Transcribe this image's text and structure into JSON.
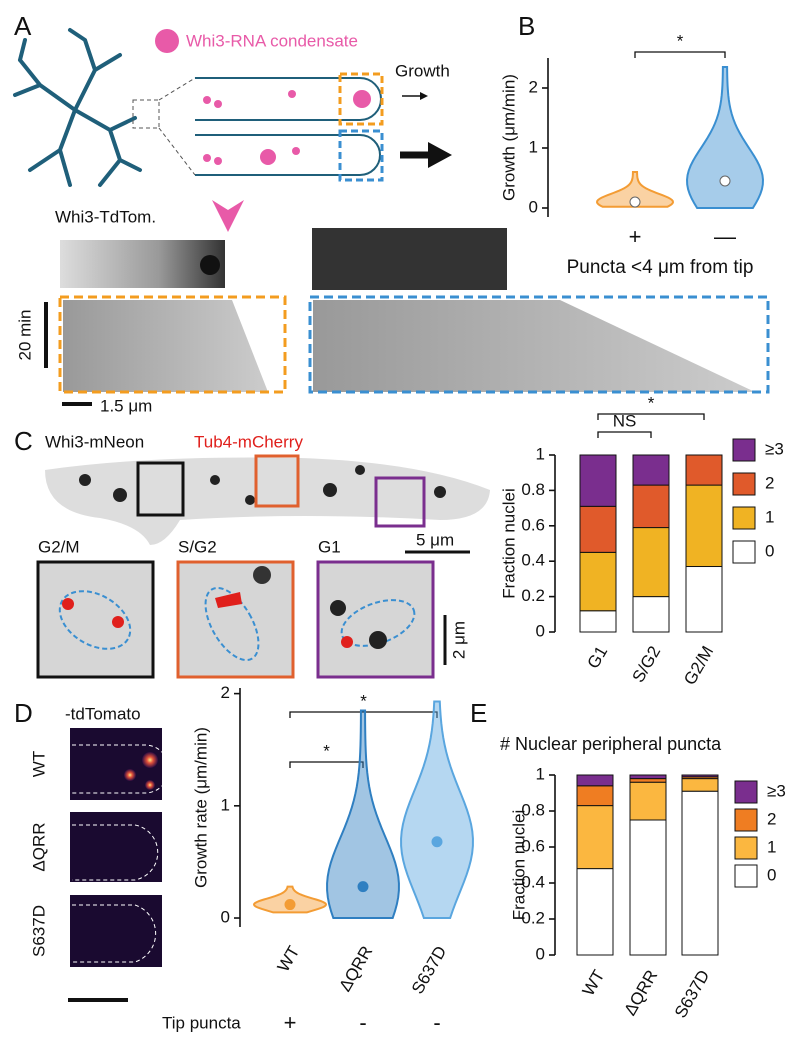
{
  "panel_labels": [
    "A",
    "B",
    "C",
    "D",
    "E"
  ],
  "panel_a": {
    "legend": "Whi3-RNA condensate",
    "growth_label": "Growth",
    "image_label": "Whi3-TdTom.",
    "time_scale": "20 min",
    "length_scale": "1.5 μm"
  },
  "panel_b": {
    "chart_data": {
      "type": "violin",
      "ylabel": "Growth (μm/min)",
      "xlabel": "Puncta <4 μm from tip",
      "categories": [
        "+",
        "—"
      ],
      "values": [
        0.1,
        0.45
      ],
      "min": [
        0.02,
        0.0
      ],
      "max": [
        0.6,
        2.35
      ],
      "colors": [
        "#f39c34",
        "#3a8fd1"
      ],
      "ylim": [
        -0.15,
        2.5
      ],
      "yticks": [
        0,
        1,
        2
      ],
      "significance": [
        "*"
      ]
    }
  },
  "panel_c": {
    "legend_left": "Whi3-mNeon",
    "legend_right": "Tub4-mCherry",
    "insets": [
      "G2/M",
      "S/G2",
      "G1"
    ],
    "scale_large": "5 μm",
    "scale_small": "2 μm",
    "chart_data": {
      "type": "stacked_bar",
      "ylabel": "Fraction nuclei",
      "categories": [
        "G1",
        "S/G2",
        "G2/M"
      ],
      "series": [
        {
          "name": "0",
          "color": "#ffffff",
          "values": [
            0.12,
            0.2,
            0.37
          ]
        },
        {
          "name": "1",
          "color": "#f0b323",
          "values": [
            0.33,
            0.39,
            0.46
          ]
        },
        {
          "name": "2",
          "color": "#e05a2b",
          "values": [
            0.26,
            0.24,
            0.17
          ]
        },
        {
          "name": "≥3",
          "color": "#7a2e8e",
          "values": [
            0.29,
            0.17,
            0
          ]
        }
      ],
      "ylim": [
        0,
        1
      ],
      "yticks": [
        0,
        0.2,
        0.4,
        0.6,
        0.8,
        1
      ],
      "significance": [
        "NS",
        "*"
      ]
    }
  },
  "panel_d": {
    "image_title": "-tdTomato",
    "image_labels": [
      "WT",
      "ΔQRR",
      "S637D"
    ],
    "tip_label": "Tip puncta",
    "tip_values": [
      "+",
      "-",
      "-"
    ],
    "chart_data": {
      "type": "violin",
      "ylabel": "Growth rate (μm/min)",
      "categories": [
        "WT",
        "ΔQRR",
        "S637D"
      ],
      "values": [
        0.12,
        0.28,
        0.68
      ],
      "min": [
        0.05,
        0.0,
        0.0
      ],
      "max": [
        0.28,
        1.85,
        1.93
      ],
      "colors": [
        "#f39c34",
        "#2f7fc1",
        "#5aa6df"
      ],
      "ylim": [
        -0.08,
        2.05
      ],
      "yticks": [
        0,
        1,
        2
      ],
      "significance": [
        "*",
        "*"
      ]
    }
  },
  "panel_e": {
    "chart_data": {
      "type": "stacked_bar",
      "title": "# Nuclear peripheral puncta",
      "ylabel": "Fraction nuclei",
      "categories": [
        "WT",
        "ΔQRR",
        "S637D"
      ],
      "series": [
        {
          "name": "0",
          "color": "#ffffff",
          "values": [
            0.48,
            0.75,
            0.91
          ]
        },
        {
          "name": "1",
          "color": "#fbb740",
          "values": [
            0.35,
            0.21,
            0.07
          ]
        },
        {
          "name": "2",
          "color": "#ef7d22",
          "values": [
            0.11,
            0.02,
            0.01
          ]
        },
        {
          "name": "≥3",
          "color": "#7a2e8e",
          "values": [
            0.06,
            0.02,
            0.01
          ]
        }
      ],
      "ylim": [
        0,
        1
      ],
      "yticks": [
        0,
        0.2,
        0.4,
        0.6,
        0.8,
        1
      ]
    }
  }
}
